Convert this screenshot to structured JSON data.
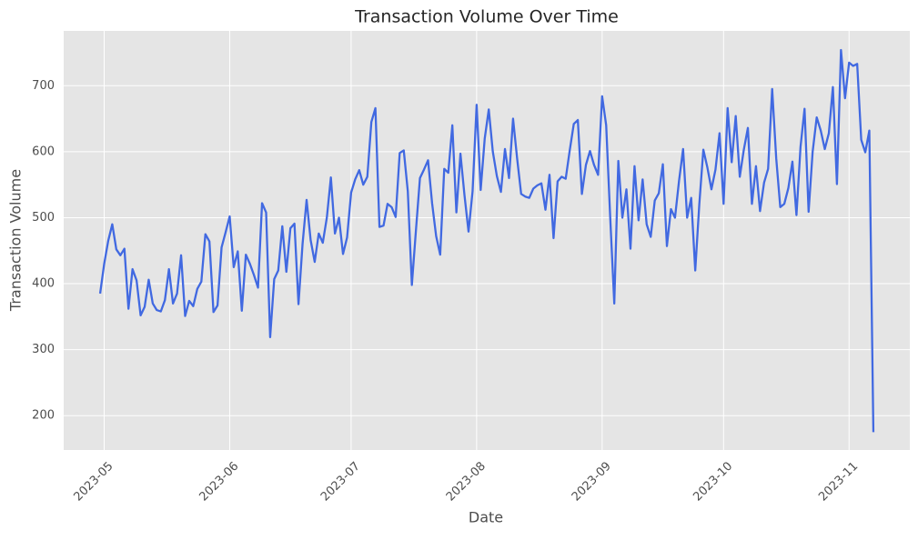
{
  "chart_data": {
    "type": "line",
    "title": "Transaction Volume Over Time",
    "x_label": "Date",
    "y_label": "Transaction Volume",
    "color": "#4169e1",
    "grid": true,
    "x": [
      "2023-04-30",
      "2023-05-01",
      "2023-05-02",
      "2023-05-03",
      "2023-05-04",
      "2023-05-05",
      "2023-05-06",
      "2023-05-07",
      "2023-05-08",
      "2023-05-09",
      "2023-05-10",
      "2023-05-11",
      "2023-05-12",
      "2023-05-13",
      "2023-05-14",
      "2023-05-15",
      "2023-05-16",
      "2023-05-17",
      "2023-05-18",
      "2023-05-19",
      "2023-05-20",
      "2023-05-21",
      "2023-05-22",
      "2023-05-23",
      "2023-05-24",
      "2023-05-25",
      "2023-05-26",
      "2023-05-27",
      "2023-05-28",
      "2023-05-29",
      "2023-05-30",
      "2023-05-31",
      "2023-06-01",
      "2023-06-02",
      "2023-06-03",
      "2023-06-04",
      "2023-06-05",
      "2023-06-06",
      "2023-06-07",
      "2023-06-08",
      "2023-06-09",
      "2023-06-10",
      "2023-06-11",
      "2023-06-12",
      "2023-06-13",
      "2023-06-14",
      "2023-06-15",
      "2023-06-16",
      "2023-06-17",
      "2023-06-18",
      "2023-06-19",
      "2023-06-20",
      "2023-06-21",
      "2023-06-22",
      "2023-06-23",
      "2023-06-24",
      "2023-06-25",
      "2023-06-26",
      "2023-06-27",
      "2023-06-28",
      "2023-06-29",
      "2023-06-30",
      "2023-07-01",
      "2023-07-02",
      "2023-07-03",
      "2023-07-04",
      "2023-07-05",
      "2023-07-06",
      "2023-07-07",
      "2023-07-08",
      "2023-07-09",
      "2023-07-10",
      "2023-07-11",
      "2023-07-12",
      "2023-07-13",
      "2023-07-14",
      "2023-07-15",
      "2023-07-16",
      "2023-07-17",
      "2023-07-18",
      "2023-07-19",
      "2023-07-20",
      "2023-07-21",
      "2023-07-22",
      "2023-07-23",
      "2023-07-24",
      "2023-07-25",
      "2023-07-26",
      "2023-07-27",
      "2023-07-28",
      "2023-07-29",
      "2023-07-30",
      "2023-07-31",
      "2023-08-01",
      "2023-08-02",
      "2023-08-03",
      "2023-08-04",
      "2023-08-05",
      "2023-08-06",
      "2023-08-07",
      "2023-08-08",
      "2023-08-09",
      "2023-08-10",
      "2023-08-11",
      "2023-08-12",
      "2023-08-13",
      "2023-08-14",
      "2023-08-15",
      "2023-08-16",
      "2023-08-17",
      "2023-08-18",
      "2023-08-19",
      "2023-08-20",
      "2023-08-21",
      "2023-08-22",
      "2023-08-23",
      "2023-08-24",
      "2023-08-25",
      "2023-08-26",
      "2023-08-27",
      "2023-08-28",
      "2023-08-29",
      "2023-08-30",
      "2023-08-31",
      "2023-09-01",
      "2023-09-02",
      "2023-09-03",
      "2023-09-04",
      "2023-09-05",
      "2023-09-06",
      "2023-09-07",
      "2023-09-08",
      "2023-09-09",
      "2023-09-10",
      "2023-09-11",
      "2023-09-12",
      "2023-09-13",
      "2023-09-14",
      "2023-09-15",
      "2023-09-16",
      "2023-09-17",
      "2023-09-18",
      "2023-09-19",
      "2023-09-20",
      "2023-09-21",
      "2023-09-22",
      "2023-09-23",
      "2023-09-24",
      "2023-09-25",
      "2023-09-26",
      "2023-09-27",
      "2023-09-28",
      "2023-09-29",
      "2023-09-30",
      "2023-10-01",
      "2023-10-02",
      "2023-10-03",
      "2023-10-04",
      "2023-10-05",
      "2023-10-06",
      "2023-10-07",
      "2023-10-08",
      "2023-10-09",
      "2023-10-10",
      "2023-10-11",
      "2023-10-12",
      "2023-10-13",
      "2023-10-14",
      "2023-10-15",
      "2023-10-16",
      "2023-10-17",
      "2023-10-18",
      "2023-10-19",
      "2023-10-20",
      "2023-10-21",
      "2023-10-22",
      "2023-10-23",
      "2023-10-24",
      "2023-10-25",
      "2023-10-26",
      "2023-10-27",
      "2023-10-28",
      "2023-10-29",
      "2023-10-30",
      "2023-10-31",
      "2023-11-01",
      "2023-11-02",
      "2023-11-03",
      "2023-11-04",
      "2023-11-05",
      "2023-11-06",
      "2023-11-07"
    ],
    "values": [
      385,
      430,
      465,
      490,
      452,
      443,
      453,
      362,
      422,
      405,
      352,
      365,
      406,
      370,
      360,
      358,
      375,
      422,
      370,
      385,
      443,
      351,
      374,
      366,
      392,
      403,
      475,
      464,
      357,
      367,
      455,
      478,
      502,
      425,
      449,
      359,
      444,
      430,
      413,
      394,
      522,
      508,
      319,
      407,
      420,
      487,
      418,
      484,
      491,
      369,
      460,
      527,
      466,
      433,
      476,
      462,
      500,
      561,
      476,
      500,
      445,
      470,
      538,
      558,
      572,
      550,
      562,
      645,
      666,
      486,
      488,
      521,
      516,
      501,
      598,
      602,
      540,
      398,
      480,
      560,
      573,
      587,
      522,
      472,
      444,
      574,
      568,
      640,
      508,
      597,
      534,
      479,
      540,
      671,
      542,
      620,
      664,
      600,
      563,
      539,
      604,
      560,
      650,
      590,
      536,
      532,
      530,
      544,
      549,
      552,
      512,
      565,
      469,
      555,
      562,
      559,
      602,
      642,
      648,
      536,
      580,
      601,
      580,
      565,
      684,
      640,
      500,
      370,
      586,
      500,
      543,
      453,
      578,
      496,
      558,
      490,
      471,
      526,
      537,
      581,
      457,
      513,
      500,
      556,
      604,
      500,
      530,
      420,
      520,
      603,
      576,
      543,
      573,
      628,
      521,
      666,
      584,
      654,
      562,
      603,
      636,
      521,
      578,
      510,
      553,
      574,
      695,
      590,
      516,
      521,
      545,
      585,
      504,
      607,
      665,
      509,
      600,
      652,
      632,
      604,
      628,
      698,
      551,
      754,
      681,
      735,
      730,
      733,
      618,
      599,
      632,
      175
    ],
    "xlim": [
      "2023-04-21",
      "2023-11-16"
    ],
    "xticks": [
      {
        "value": "2023-05-01",
        "label": "2023-05"
      },
      {
        "value": "2023-06-01",
        "label": "2023-06"
      },
      {
        "value": "2023-07-01",
        "label": "2023-07"
      },
      {
        "value": "2023-08-01",
        "label": "2023-08"
      },
      {
        "value": "2023-09-01",
        "label": "2023-09"
      },
      {
        "value": "2023-10-01",
        "label": "2023-10"
      },
      {
        "value": "2023-11-01",
        "label": "2023-11"
      }
    ],
    "ylim": [
      148,
      783
    ],
    "yticks": [
      200,
      300,
      400,
      500,
      600,
      700
    ]
  }
}
